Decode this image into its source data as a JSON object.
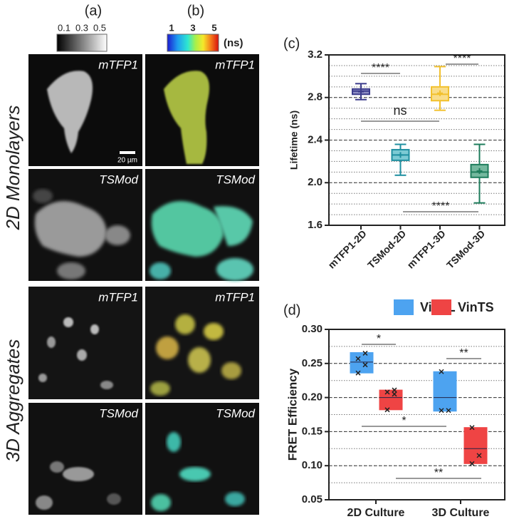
{
  "figure": {
    "panel_a": "(a)",
    "panel_b": "(b)",
    "colorbar_a_ticks": [
      0.1,
      0.3,
      0.5
    ],
    "colorbar_b_ticks": [
      1,
      3,
      5
    ],
    "colorbar_b_unit": "(ns)",
    "row_labels": [
      "2D Monolayers",
      "3D Aggregates"
    ],
    "image_labels": [
      [
        "mTFP1",
        "mTFP1"
      ],
      [
        "TSMod",
        "TSMod"
      ],
      [
        "mTFP1",
        "mTFP1"
      ],
      [
        "TSMod",
        "TSMod"
      ]
    ],
    "scale_bar": "20 µm"
  },
  "chart_data": [
    {
      "type": "box",
      "panel_label": "(c)",
      "y_label": "Lifetime (ns)",
      "categories": [
        "mTFP1-2D",
        "TSMod-2D",
        "mTFP1-3D",
        "TSMod-3D"
      ],
      "boxes": [
        {
          "color": "#3d3d8c",
          "fill": "#8f8fc4",
          "low": 2.78,
          "q1": 2.83,
          "median": 2.86,
          "q3": 2.88,
          "high": 2.93,
          "mean": 2.855
        },
        {
          "color": "#1f8fa0",
          "fill": "#7ccad4",
          "low": 2.07,
          "q1": 2.21,
          "median": 2.26,
          "q3": 2.31,
          "high": 2.36,
          "mean": 2.26
        },
        {
          "color": "#f2c12e",
          "fill": "#f9dd8a",
          "low": 2.68,
          "q1": 2.77,
          "median": 2.83,
          "q3": 2.9,
          "high": 3.09,
          "mean": 2.84
        },
        {
          "color": "#1e7d5c",
          "fill": "#74b89e",
          "low": 1.81,
          "q1": 2.05,
          "median": 2.1,
          "q3": 2.17,
          "high": 2.36,
          "mean": 2.11
        }
      ],
      "ylim": [
        1.6,
        3.2
      ],
      "yticks": [
        1.6,
        {
          "value": 2,
          "label": "2.0"
        },
        2.4,
        2.8,
        3.2
      ],
      "grid": true,
      "minor_grid_step": 0.1,
      "annotations": [
        {
          "label": "****"
        },
        {
          "label": "****"
        },
        {
          "label": "ns"
        },
        {
          "label": "****"
        }
      ]
    },
    {
      "type": "floating_box",
      "panel_label": "(d)",
      "y_label": "FRET Efficiency",
      "categories": [
        "2D Culture",
        "3D Culture"
      ],
      "series": [
        {
          "name": "VinTL",
          "color": "#4da3f0",
          "boxes": [
            {
              "low": 0.236,
              "median": 0.252,
              "high": 0.266,
              "points": [
                0.236,
                0.248,
                0.257,
                0.265
              ]
            },
            {
              "low": 0.18,
              "median": 0.2,
              "high": 0.238,
              "points": [
                0.181,
                0.181,
                0.238
              ]
            }
          ]
        },
        {
          "name": "VinTS",
          "color": "#ef4444",
          "boxes": [
            {
              "low": 0.182,
              "median": 0.2,
              "high": 0.211,
              "points": [
                0.182,
                0.205,
                0.208,
                0.211
              ]
            },
            {
              "low": 0.103,
              "median": 0.125,
              "high": 0.156,
              "points": [
                0.103,
                0.115,
                0.156
              ]
            }
          ]
        }
      ],
      "ylim": [
        0.05,
        0.3
      ],
      "yticks": [
        0.05,
        {
          "value": 0.1,
          "label": "0.10"
        },
        0.15,
        {
          "value": 0.2,
          "label": "0.20"
        },
        0.25,
        {
          "value": 0.3,
          "label": "0.30"
        }
      ],
      "grid": true,
      "minor_grid_step": 0.025,
      "annotations": [
        {
          "label": "*"
        },
        {
          "label": "**"
        },
        {
          "label": "*"
        },
        {
          "label": "**"
        }
      ]
    }
  ]
}
